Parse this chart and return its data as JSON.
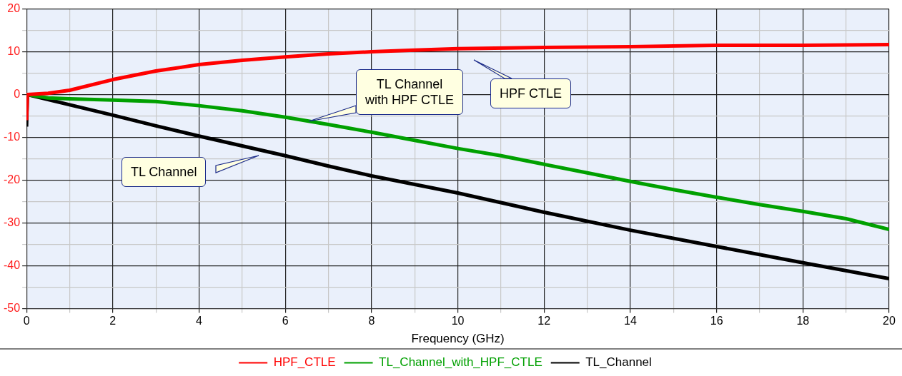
{
  "chart_data": {
    "type": "line",
    "xlabel": "Frequency (GHz)",
    "xlim": [
      0,
      20
    ],
    "ylim": [
      -50,
      20
    ],
    "xticks": [
      0,
      {
        "value": 1,
        "label": null
      },
      2,
      {
        "value": 3,
        "label": null
      },
      4,
      {
        "value": 5,
        "label": null
      },
      6,
      {
        "value": 7,
        "label": null
      },
      8,
      {
        "value": 9,
        "label": null
      },
      10,
      {
        "value": 11,
        "label": null
      },
      12,
      {
        "value": 13,
        "label": null
      },
      14,
      {
        "value": 15,
        "label": null
      },
      16,
      {
        "value": 17,
        "label": null
      },
      18,
      {
        "value": 19,
        "label": null
      },
      20
    ],
    "yticks": [
      -50,
      {
        "value": -45,
        "label": null
      },
      -40,
      {
        "value": -35,
        "label": null
      },
      -30,
      {
        "value": -25,
        "label": null
      },
      -20,
      {
        "value": -15,
        "label": null
      },
      -10,
      {
        "value": -5,
        "label": null
      },
      0,
      {
        "value": 5,
        "label": null
      },
      10,
      {
        "value": 15,
        "label": null
      },
      20
    ],
    "grid": true,
    "legend": "bottom",
    "marker": "none",
    "line_style": "solid",
    "series": [
      {
        "name": "HPF_CTLE",
        "color": "#ff0000",
        "x": [
          0,
          0.02,
          0.5,
          1,
          2,
          3,
          4,
          5,
          6,
          7,
          8,
          9,
          10,
          12,
          14,
          16,
          18,
          20
        ],
        "values": [
          -6,
          0,
          0.3,
          1,
          3.5,
          5.5,
          7,
          8,
          8.8,
          9.5,
          10,
          10.4,
          10.7,
          11,
          11.2,
          11.5,
          11.5,
          11.7
        ]
      },
      {
        "name": "TL_Channel_with_HPF_CTLE",
        "color": "#00a000",
        "x": [
          0,
          0.5,
          1,
          2,
          3,
          4,
          5,
          6,
          7,
          8,
          9,
          10,
          11,
          12,
          13,
          14,
          15,
          16,
          17,
          18,
          19,
          20
        ],
        "values": [
          0,
          -0.8,
          -1,
          -1.3,
          -1.6,
          -2.6,
          -3.8,
          -5.3,
          -7,
          -8.8,
          -10.7,
          -12.6,
          -14.3,
          -16.3,
          -18.3,
          -20.3,
          -22.2,
          -24,
          -25.7,
          -27.3,
          -29,
          -31.5
        ]
      },
      {
        "name": "TL_Channel",
        "color": "#000000",
        "x": [
          0,
          0.02,
          1,
          2,
          3,
          4,
          5,
          6,
          7,
          8,
          9,
          10,
          12,
          14,
          16,
          18,
          20
        ],
        "values": [
          -7.5,
          0,
          -2.4,
          -4.8,
          -7.3,
          -9.7,
          -12,
          -14.3,
          -16.7,
          -19,
          -21,
          -23,
          -27.5,
          -31.7,
          -35.5,
          -39.3,
          -43
        ]
      }
    ],
    "annotations": [
      "HPF CTLE",
      "TL Channel\nwith HPF CTLE",
      "TL Channel"
    ]
  }
}
